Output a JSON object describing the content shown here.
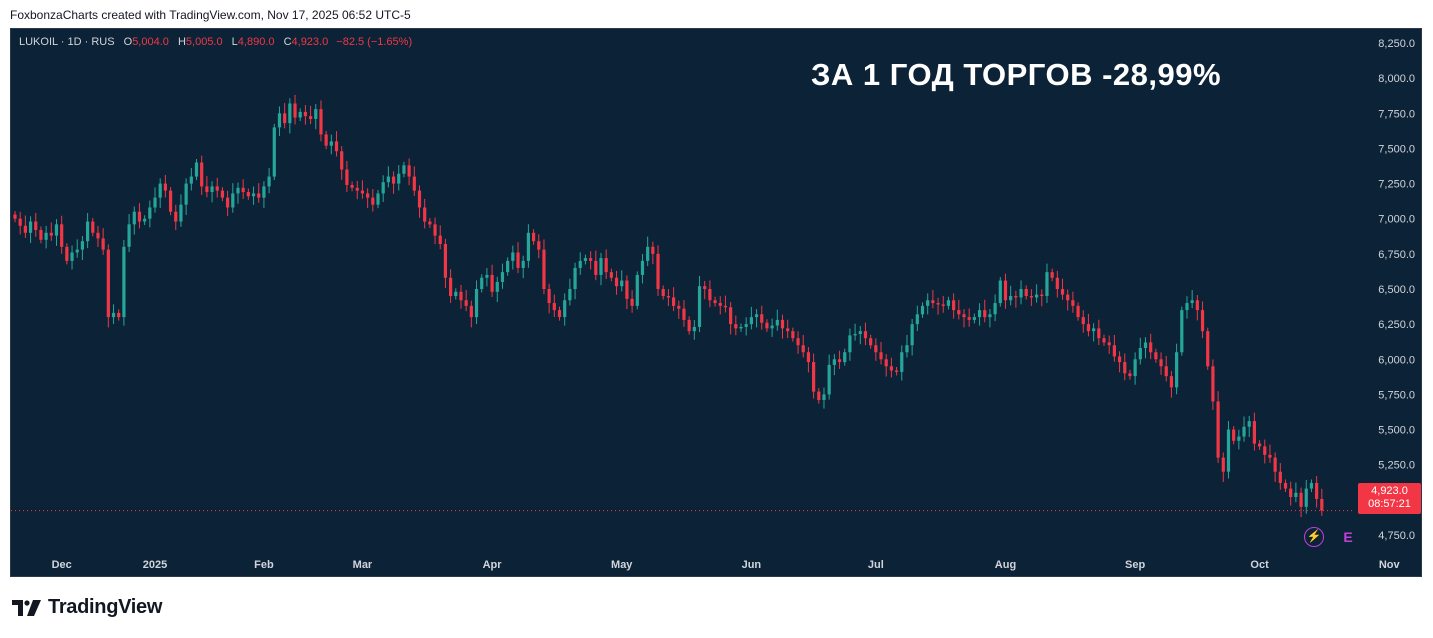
{
  "caption": "FoxbonzaCharts created with TradingView.com, Nov 17, 2025 06:52 UTC-5",
  "legend": {
    "symbol": "LUKOIL · 1D · RUS",
    "o_label": "O",
    "o_value": "5,004.0",
    "h_label": "H",
    "h_value": "5,005.0",
    "l_label": "L",
    "l_value": "4,890.0",
    "c_label": "C",
    "c_value": "4,923.0",
    "change": "−82.5 (−1.65%)"
  },
  "headline": "ЗА 1 ГОД ТОРГОВ -28,99%",
  "price_tag": {
    "price": "4,923.0",
    "countdown": "08:57:21"
  },
  "brand": "TradingView",
  "colors": {
    "background": "#0c2337",
    "up": "#26a69a",
    "down": "#f23645",
    "text": "#d1d4dc",
    "accent": "#c13fd8"
  },
  "icons": [
    "bolt-icon",
    "earnings-icon",
    "tradingview-logo-icon"
  ],
  "chart_data": {
    "type": "candlestick",
    "title": "",
    "ylim": [
      4650,
      8350
    ],
    "y_ticks": [
      "8,250.0",
      "8,000.0",
      "7,750.0",
      "7,500.0",
      "7,250.0",
      "7,000.0",
      "6,750.0",
      "6,500.0",
      "6,250.0",
      "6,000.0",
      "5,750.0",
      "5,500.0",
      "5,250.0",
      "5,000.0",
      "4,750.0"
    ],
    "y_tick_values": [
      8250,
      8000,
      7750,
      7500,
      7250,
      7000,
      6750,
      6500,
      6250,
      6000,
      5750,
      5500,
      5250,
      5000,
      4750
    ],
    "x_ticks": [
      "Dec",
      "2025",
      "Feb",
      "Mar",
      "Apr",
      "May",
      "Jun",
      "Jul",
      "Aug",
      "Sep",
      "Oct",
      "Nov"
    ],
    "x_tick_index": [
      9,
      27,
      48,
      67,
      92,
      117,
      142,
      166,
      191,
      216,
      240,
      265
    ],
    "last_price": 4923,
    "series": [
      {
        "closes": [
          7000,
          6950,
          6900,
          6980,
          6920,
          6850,
          6900,
          6880,
          6960,
          6800,
          6700,
          6760,
          6780,
          6840,
          6980,
          6900,
          6860,
          6780,
          6300,
          6330,
          6300,
          6800,
          6960,
          7050,
          6980,
          7000,
          7080,
          7150,
          7250,
          7200,
          7050,
          6980,
          7100,
          7250,
          7300,
          7400,
          7230,
          7190,
          7230,
          7200,
          7150,
          7080,
          7180,
          7220,
          7190,
          7160,
          7180,
          7150,
          7230,
          7300,
          7650,
          7750,
          7680,
          7820,
          7720,
          7760,
          7730,
          7710,
          7780,
          7600,
          7520,
          7550,
          7480,
          7350,
          7240,
          7220,
          7200,
          7180,
          7150,
          7100,
          7180,
          7260,
          7300,
          7250,
          7320,
          7380,
          7300,
          7200,
          7080,
          6980,
          6960,
          6880,
          6820,
          6580,
          6450,
          6480,
          6420,
          6380,
          6300,
          6500,
          6580,
          6600,
          6480,
          6550,
          6620,
          6700,
          6760,
          6650,
          6700,
          6900,
          6840,
          6780,
          6500,
          6400,
          6350,
          6300,
          6420,
          6500,
          6650,
          6700,
          6720,
          6700,
          6600,
          6720,
          6620,
          6580,
          6520,
          6560,
          6430,
          6380,
          6600,
          6700,
          6800,
          6750,
          6500,
          6450,
          6440,
          6380,
          6360,
          6280,
          6200,
          6230,
          6520,
          6500,
          6420,
          6400,
          6380,
          6370,
          6250,
          6220,
          6230,
          6250,
          6300,
          6320,
          6260,
          6220,
          6240,
          6280,
          6220,
          6200,
          6150,
          6100,
          6050,
          5980,
          5770,
          5710,
          5750,
          5960,
          6000,
          5980,
          6050,
          6170,
          6180,
          6200,
          6150,
          6100,
          6050,
          6000,
          5950,
          5920,
          5910,
          6050,
          6100,
          6250,
          6320,
          6380,
          6420,
          6400,
          6390,
          6380,
          6420,
          6350,
          6320,
          6300,
          6280,
          6300,
          6350,
          6300,
          6320,
          6400,
          6560,
          6420,
          6450,
          6440,
          6500,
          6450,
          6440,
          6460,
          6450,
          6620,
          6580,
          6500,
          6460,
          6420,
          6380,
          6300,
          6250,
          6200,
          6220,
          6150,
          6120,
          6100,
          6020,
          5980,
          5900,
          5880,
          6000,
          6080,
          6120,
          6050,
          6000,
          5950,
          5880,
          5800,
          6050,
          6350,
          6400,
          6420,
          6350,
          6200,
          5950,
          5700,
          5300,
          5200,
          5500,
          5420,
          5450,
          5520,
          5560,
          5400,
          5380,
          5320,
          5300,
          5200,
          5120,
          5080,
          5020,
          5050,
          4950,
          5080,
          5120,
          5006,
          4923
        ]
      }
    ]
  }
}
